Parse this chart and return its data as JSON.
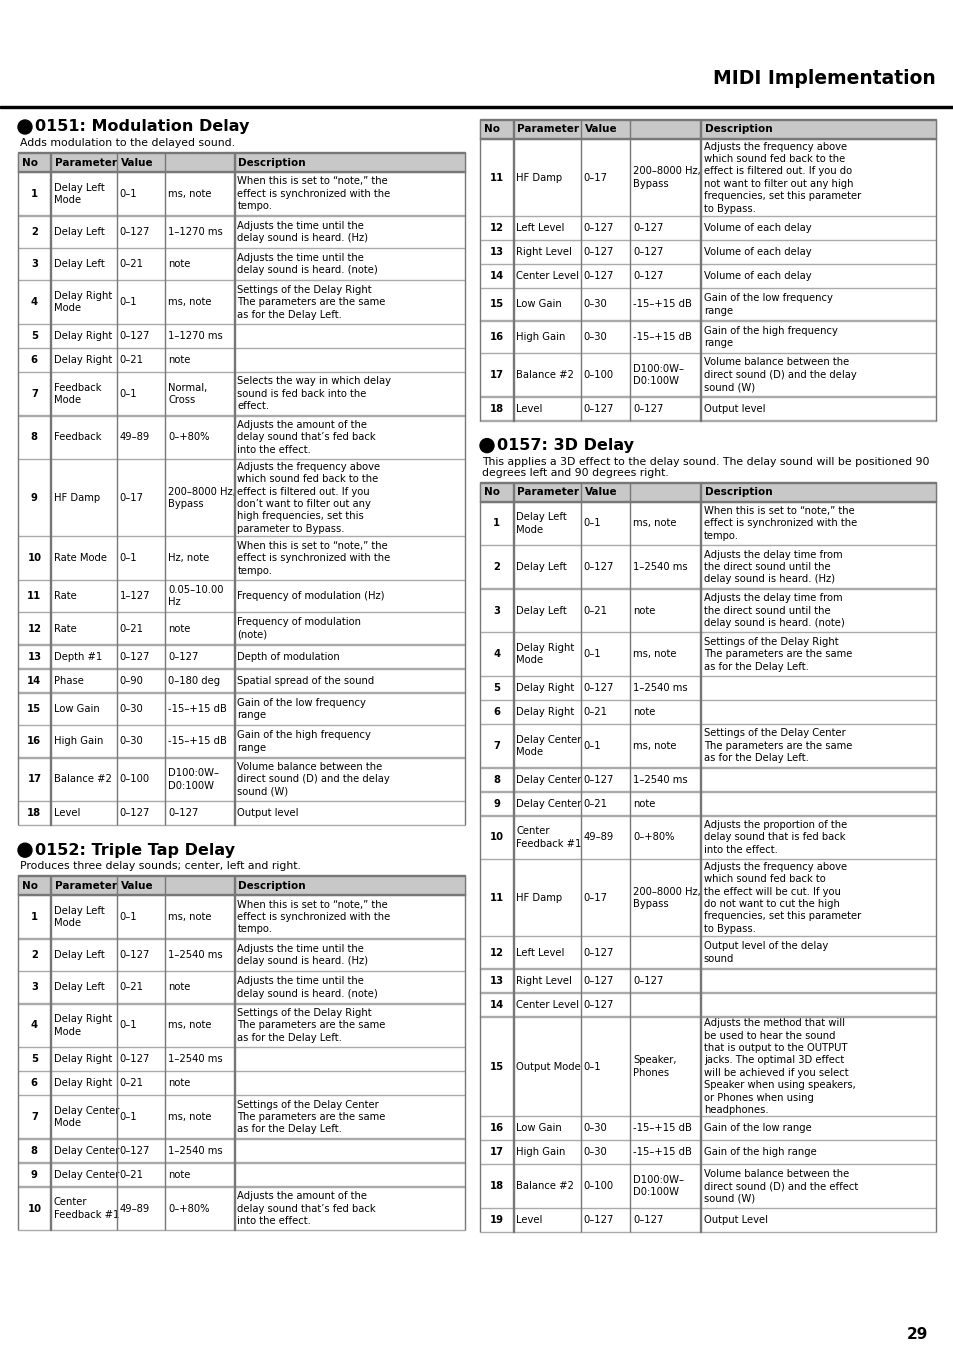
{
  "page_title": "MIDI Implementation",
  "page_number": "29",
  "section1": {
    "title": "0151: Modulation Delay",
    "subtitle": "Adds modulation to the delayed sound.",
    "rows": [
      {
        "no": "1",
        "param": "Delay Left\nMode",
        "value": "0–1",
        "v2": "ms, note",
        "desc": "When this is set to “note,” the\neffect is synchronized with the\ntempo."
      },
      {
        "no": "2",
        "param": "Delay Left",
        "value": "0–127",
        "v2": "1–1270 ms",
        "desc": "Adjusts the time until the\ndelay sound is heard. (Hz)"
      },
      {
        "no": "3",
        "param": "Delay Left",
        "value": "0–21",
        "v2": "note",
        "desc": "Adjusts the time until the\ndelay sound is heard. (note)"
      },
      {
        "no": "4",
        "param": "Delay Right\nMode",
        "value": "0–1",
        "v2": "ms, note",
        "desc": "Settings of the Delay Right\nThe parameters are the same\nas for the Delay Left."
      },
      {
        "no": "5",
        "param": "Delay Right",
        "value": "0–127",
        "v2": "1–1270 ms",
        "desc": ""
      },
      {
        "no": "6",
        "param": "Delay Right",
        "value": "0–21",
        "v2": "note",
        "desc": ""
      },
      {
        "no": "7",
        "param": "Feedback\nMode",
        "value": "0–1",
        "v2": "Normal,\nCross",
        "desc": "Selects the way in which delay\nsound is fed back into the\neffect."
      },
      {
        "no": "8",
        "param": "Feedback",
        "value": "49–89",
        "v2": "0–+80%",
        "desc": "Adjusts the amount of the\ndelay sound that’s fed back\ninto the effect."
      },
      {
        "no": "9",
        "param": "HF Damp",
        "value": "0–17",
        "v2": "200–8000 Hz,\nBypass",
        "desc": "Adjusts the frequency above\nwhich sound fed back to the\neffect is filtered out. If you\ndon’t want to filter out any\nhigh frequencies, set this\nparameter to Bypass."
      },
      {
        "no": "10",
        "param": "Rate Mode",
        "value": "0–1",
        "v2": "Hz, note",
        "desc": "When this is set to “note,” the\neffect is synchronized with the\ntempo."
      },
      {
        "no": "11",
        "param": "Rate",
        "value": "1–127",
        "v2": "0.05–10.00\nHz",
        "desc": "Frequency of modulation (Hz)"
      },
      {
        "no": "12",
        "param": "Rate",
        "value": "0–21",
        "v2": "note",
        "desc": "Frequency of modulation\n(note)"
      },
      {
        "no": "13",
        "param": "Depth #1",
        "value": "0–127",
        "v2": "0–127",
        "desc": "Depth of modulation"
      },
      {
        "no": "14",
        "param": "Phase",
        "value": "0–90",
        "v2": "0–180 deg",
        "desc": "Spatial spread of the sound"
      },
      {
        "no": "15",
        "param": "Low Gain",
        "value": "0–30",
        "v2": "-15–+15 dB",
        "desc": "Gain of the low frequency\nrange"
      },
      {
        "no": "16",
        "param": "High Gain",
        "value": "0–30",
        "v2": "-15–+15 dB",
        "desc": "Gain of the high frequency\nrange"
      },
      {
        "no": "17",
        "param": "Balance #2",
        "value": "0–100",
        "v2": "D100:0W–\nD0:100W",
        "desc": "Volume balance between the\ndirect sound (D) and the delay\nsound (W)"
      },
      {
        "no": "18",
        "param": "Level",
        "value": "0–127",
        "v2": "0–127",
        "desc": "Output level"
      }
    ]
  },
  "section2": {
    "title": "0152: Triple Tap Delay",
    "subtitle": "Produces three delay sounds; center, left and right.",
    "rows": [
      {
        "no": "1",
        "param": "Delay Left\nMode",
        "value": "0–1",
        "v2": "ms, note",
        "desc": "When this is set to “note,” the\neffect is synchronized with the\ntempo."
      },
      {
        "no": "2",
        "param": "Delay Left",
        "value": "0–127",
        "v2": "1–2540 ms",
        "desc": "Adjusts the time until the\ndelay sound is heard. (Hz)"
      },
      {
        "no": "3",
        "param": "Delay Left",
        "value": "0–21",
        "v2": "note",
        "desc": "Adjusts the time until the\ndelay sound is heard. (note)"
      },
      {
        "no": "4",
        "param": "Delay Right\nMode",
        "value": "0–1",
        "v2": "ms, note",
        "desc": "Settings of the Delay Right\nThe parameters are the same\nas for the Delay Left."
      },
      {
        "no": "5",
        "param": "Delay Right",
        "value": "0–127",
        "v2": "1–2540 ms",
        "desc": ""
      },
      {
        "no": "6",
        "param": "Delay Right",
        "value": "0–21",
        "v2": "note",
        "desc": ""
      },
      {
        "no": "7",
        "param": "Delay Center\nMode",
        "value": "0–1",
        "v2": "ms, note",
        "desc": "Settings of the Delay Center\nThe parameters are the same\nas for the Delay Left."
      },
      {
        "no": "8",
        "param": "Delay Center",
        "value": "0–127",
        "v2": "1–2540 ms",
        "desc": ""
      },
      {
        "no": "9",
        "param": "Delay Center",
        "value": "0–21",
        "v2": "note",
        "desc": ""
      },
      {
        "no": "10",
        "param": "Center\nFeedback #1",
        "value": "49–89",
        "v2": "0–+80%",
        "desc": "Adjusts the amount of the\ndelay sound that’s fed back\ninto the effect."
      }
    ]
  },
  "section3": {
    "rows": [
      {
        "no": "11",
        "param": "HF Damp",
        "value": "0–17",
        "v2": "200–8000 Hz,\nBypass",
        "desc": "Adjusts the frequency above\nwhich sound fed back to the\neffect is filtered out. If you do\nnot want to filter out any high\nfrequencies, set this parameter\nto Bypass."
      },
      {
        "no": "12",
        "param": "Left Level",
        "value": "0–127",
        "v2": "0–127",
        "desc": "Volume of each delay"
      },
      {
        "no": "13",
        "param": "Right Level",
        "value": "0–127",
        "v2": "0–127",
        "desc": "Volume of each delay"
      },
      {
        "no": "14",
        "param": "Center Level",
        "value": "0–127",
        "v2": "0–127",
        "desc": "Volume of each delay"
      },
      {
        "no": "15",
        "param": "Low Gain",
        "value": "0–30",
        "v2": "-15–+15 dB",
        "desc": "Gain of the low frequency\nrange"
      },
      {
        "no": "16",
        "param": "High Gain",
        "value": "0–30",
        "v2": "-15–+15 dB",
        "desc": "Gain of the high frequency\nrange"
      },
      {
        "no": "17",
        "param": "Balance #2",
        "value": "0–100",
        "v2": "D100:0W–\nD0:100W",
        "desc": "Volume balance between the\ndirect sound (D) and the delay\nsound (W)"
      },
      {
        "no": "18",
        "param": "Level",
        "value": "0–127",
        "v2": "0–127",
        "desc": "Output level"
      }
    ]
  },
  "section4": {
    "title": "0157: 3D Delay",
    "subtitle_line1": "This applies a 3D effect to the delay sound. The delay sound will be positioned 90",
    "subtitle_line2": "degrees left and 90 degrees right.",
    "rows": [
      {
        "no": "1",
        "param": "Delay Left\nMode",
        "value": "0–1",
        "v2": "ms, note",
        "desc": "When this is set to “note,” the\neffect is synchronized with the\ntempo."
      },
      {
        "no": "2",
        "param": "Delay Left",
        "value": "0–127",
        "v2": "1–2540 ms",
        "desc": "Adjusts the delay time from\nthe direct sound until the\ndelay sound is heard. (Hz)"
      },
      {
        "no": "3",
        "param": "Delay Left",
        "value": "0–21",
        "v2": "note",
        "desc": "Adjusts the delay time from\nthe direct sound until the\ndelay sound is heard. (note)"
      },
      {
        "no": "4",
        "param": "Delay Right\nMode",
        "value": "0–1",
        "v2": "ms, note",
        "desc": "Settings of the Delay Right\nThe parameters are the same\nas for the Delay Left."
      },
      {
        "no": "5",
        "param": "Delay Right",
        "value": "0–127",
        "v2": "1–2540 ms",
        "desc": ""
      },
      {
        "no": "6",
        "param": "Delay Right",
        "value": "0–21",
        "v2": "note",
        "desc": ""
      },
      {
        "no": "7",
        "param": "Delay Center\nMode",
        "value": "0–1",
        "v2": "ms, note",
        "desc": "Settings of the Delay Center\nThe parameters are the same\nas for the Delay Left."
      },
      {
        "no": "8",
        "param": "Delay Center",
        "value": "0–127",
        "v2": "1–2540 ms",
        "desc": ""
      },
      {
        "no": "9",
        "param": "Delay Center",
        "value": "0–21",
        "v2": "note",
        "desc": ""
      },
      {
        "no": "10",
        "param": "Center\nFeedback #1",
        "value": "49–89",
        "v2": "0–+80%",
        "desc": "Adjusts the proportion of the\ndelay sound that is fed back\ninto the effect."
      },
      {
        "no": "11",
        "param": "HF Damp",
        "value": "0–17",
        "v2": "200–8000 Hz,\nBypass",
        "desc": "Adjusts the frequency above\nwhich sound fed back to\nthe effect will be cut. If you\ndo not want to cut the high\nfrequencies, set this parameter\nto Bypass."
      },
      {
        "no": "12",
        "param": "Left Level",
        "value": "0–127",
        "v2": "",
        "desc": "Output level of the delay\nsound"
      },
      {
        "no": "13",
        "param": "Right Level",
        "value": "0–127",
        "v2": "0–127",
        "desc": ""
      },
      {
        "no": "14",
        "param": "Center Level",
        "value": "0–127",
        "v2": "",
        "desc": ""
      },
      {
        "no": "15",
        "param": "Output Mode",
        "value": "0–1",
        "v2": "Speaker,\nPhones",
        "desc": "Adjusts the method that will\nbe used to hear the sound\nthat is output to the OUTPUT\njacks. The optimal 3D effect\nwill be achieved if you select\nSpeaker when using speakers,\nor Phones when using\nheadphones."
      },
      {
        "no": "16",
        "param": "Low Gain",
        "value": "0–30",
        "v2": "-15–+15 dB",
        "desc": "Gain of the low range"
      },
      {
        "no": "17",
        "param": "High Gain",
        "value": "0–30",
        "v2": "-15–+15 dB",
        "desc": "Gain of the high range"
      },
      {
        "no": "18",
        "param": "Balance #2",
        "value": "0–100",
        "v2": "D100:0W–\nD0:100W",
        "desc": "Volume balance between the\ndirect sound (D) and the effect\nsound (W)"
      },
      {
        "no": "19",
        "param": "Level",
        "value": "0–127",
        "v2": "0–127",
        "desc": "Output Level"
      }
    ]
  },
  "col_pcts": [
    0.073,
    0.148,
    0.108,
    0.155,
    0.516
  ],
  "header_bg": "#c8c8c8",
  "row_line_color": "#aaaaaa",
  "border_color": "#777777",
  "font_size": 7.2,
  "header_font_size": 7.5
}
